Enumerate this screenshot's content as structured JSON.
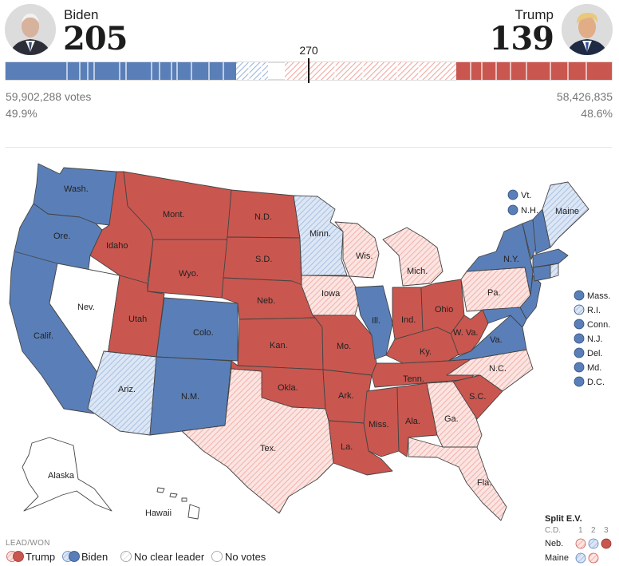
{
  "candidates": {
    "biden": {
      "name": "Biden",
      "ev": "205",
      "votes": "59,902,288 votes",
      "pct": "49.9%"
    },
    "trump": {
      "name": "Trump",
      "ev": "139",
      "votes": "58,426,835",
      "pct": "48.6%"
    }
  },
  "threshold_label": "270",
  "colors": {
    "biden_won": "#5a7fb8",
    "biden_lead": "#c9d8ee",
    "trump_won": "#c9574f",
    "trump_lead": "#f6d1cc",
    "no_votes": "#ffffff"
  },
  "states": {
    "wa": "Wash.",
    "or": "Ore.",
    "ca": "Calif.",
    "nv": "Nev.",
    "id": "Idaho",
    "mt": "Mont.",
    "wy": "Wyo.",
    "ut": "Utah",
    "az": "Ariz.",
    "co": "Colo.",
    "nm": "N.M.",
    "nd": "N.D.",
    "sd": "S.D.",
    "ne": "Neb.",
    "ks": "Kan.",
    "ok": "Okla.",
    "tx": "Tex.",
    "mn": "Minn.",
    "ia": "Iowa",
    "mo": "Mo.",
    "ar": "Ark.",
    "la": "La.",
    "wi": "Wis.",
    "il": "Ill.",
    "mi": "Mich.",
    "in": "Ind.",
    "oh": "Ohio",
    "ky": "Ky.",
    "tn": "Tenn.",
    "ms": "Miss.",
    "al": "Ala.",
    "ga": "Ga.",
    "fl": "Fla.",
    "sc": "S.C.",
    "nc": "N.C.",
    "va": "Va.",
    "wv": "W. Va.",
    "pa": "Pa.",
    "ny": "N.Y.",
    "me": "Maine",
    "ak": "Alaska",
    "hi": "Hawaii"
  },
  "small_states_top": [
    "Vt.",
    "N.H."
  ],
  "small_states_right": [
    "Mass.",
    "R.I.",
    "Conn.",
    "N.J.",
    "Del.",
    "Md.",
    "D.C."
  ],
  "legend": {
    "title": "LEAD/WON",
    "trump": "Trump",
    "biden": "Biden",
    "no_leader": "No clear leader",
    "no_votes": "No votes"
  },
  "split_ev": {
    "title": "Split E.V.",
    "cd_label": "C.D.",
    "districts": [
      "1",
      "2",
      "3"
    ],
    "rows": [
      {
        "label": "Neb."
      },
      {
        "label": "Maine"
      }
    ]
  }
}
